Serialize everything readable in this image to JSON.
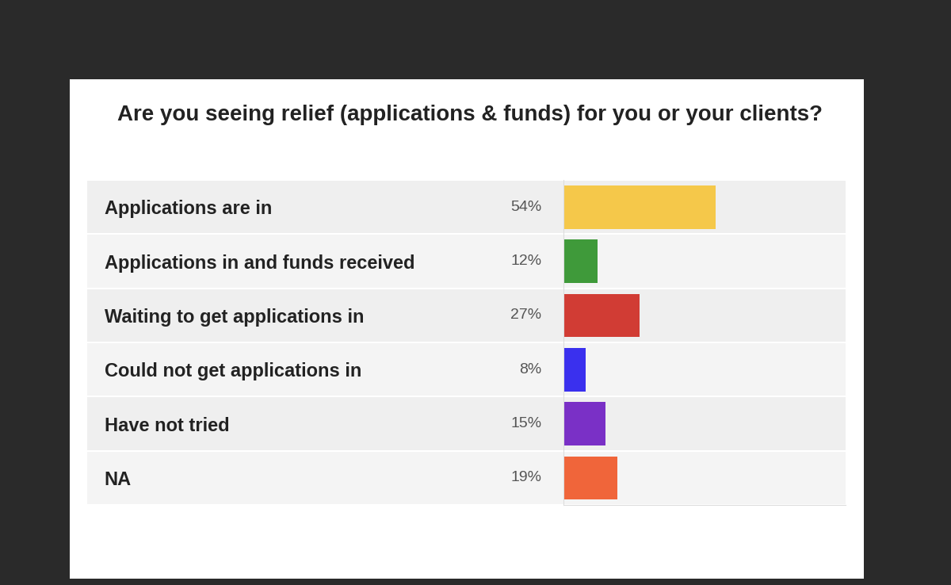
{
  "chart_data": {
    "type": "bar",
    "orientation": "horizontal",
    "title": "Are you seeing relief (applications & funds) for you or your clients?",
    "categories": [
      "Applications are in",
      "Applications in and funds received",
      "Waiting to get applications in",
      "Could not get applications in",
      "Have not tried",
      "NA"
    ],
    "values": [
      54,
      12,
      27,
      8,
      15,
      19
    ],
    "value_labels": [
      "54%",
      "12%",
      "27%",
      "8%",
      "15%",
      "19%"
    ],
    "colors": [
      "#f5c84a",
      "#3f9a3a",
      "#d13c34",
      "#3a30ee",
      "#7a30c6",
      "#f0653a"
    ],
    "xlim": [
      0,
      100
    ],
    "data_labels": true,
    "tick_labels": "y",
    "grid": false
  }
}
